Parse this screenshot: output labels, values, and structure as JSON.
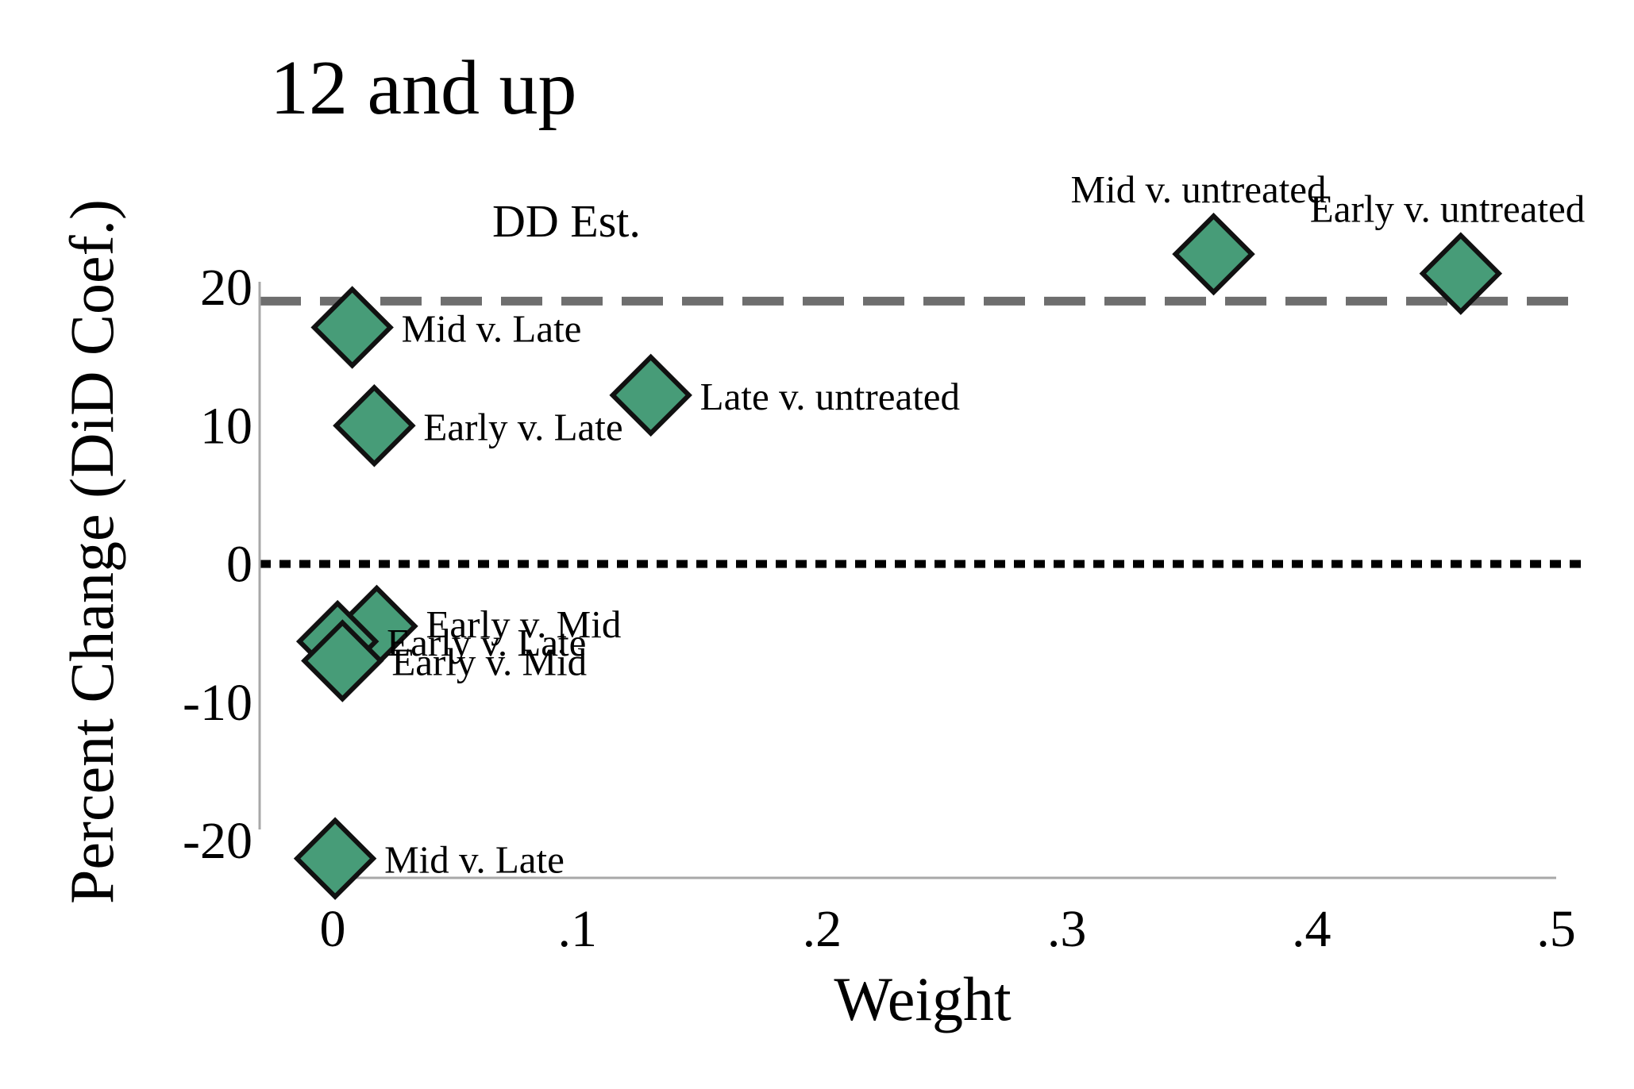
{
  "chart_data": {
    "type": "scatter",
    "title": "12 and up",
    "xlabel": "Weight",
    "ylabel": "Percent Change (DiD Coef.)",
    "xlim": [
      0,
      0.5
    ],
    "ylim": [
      -20,
      20
    ],
    "x_ticks": [
      {
        "value": 0,
        "label": "0"
      },
      {
        "value": 0.1,
        "label": ".1"
      },
      {
        "value": 0.2,
        "label": ".2"
      },
      {
        "value": 0.3,
        "label": ".3"
      },
      {
        "value": 0.4,
        "label": ".4"
      },
      {
        "value": 0.5,
        "label": ".5"
      }
    ],
    "y_ticks": [
      {
        "value": 20,
        "label": "20"
      },
      {
        "value": 10,
        "label": "10"
      },
      {
        "value": 0,
        "label": "0"
      },
      {
        "value": -10,
        "label": "-10"
      },
      {
        "value": -20,
        "label": "-20"
      }
    ],
    "reference_lines": [
      {
        "y": 19,
        "style": "dashed",
        "color": "#6e6e6e",
        "label": "DD Est."
      },
      {
        "y": 0,
        "style": "dotted",
        "color": "#000000",
        "label": ""
      }
    ],
    "marker": {
      "shape": "diamond",
      "fill": "#479c78",
      "edge": "#111111"
    },
    "points": [
      {
        "label": "Mid v. Late",
        "x": 0.008,
        "y": 17.1
      },
      {
        "label": "Early v. Late",
        "x": 0.017,
        "y": 10.0
      },
      {
        "label": "Late v. untreated",
        "x": 0.13,
        "y": 12.2
      },
      {
        "label": "Mid v. untreated",
        "x": 0.36,
        "y": 22.4
      },
      {
        "label": "Early v. untreated",
        "x": 0.461,
        "y": 21.0
      },
      {
        "label": "Early v. Mid",
        "x": 0.018,
        "y": -4.5
      },
      {
        "label": "Early v. Late",
        "x": 0.002,
        "y": -5.6
      },
      {
        "label": "Early v. Mid",
        "x": 0.004,
        "y": -7.0
      },
      {
        "label": "Mid v. Late",
        "x": 0.001,
        "y": -21.3
      }
    ]
  }
}
